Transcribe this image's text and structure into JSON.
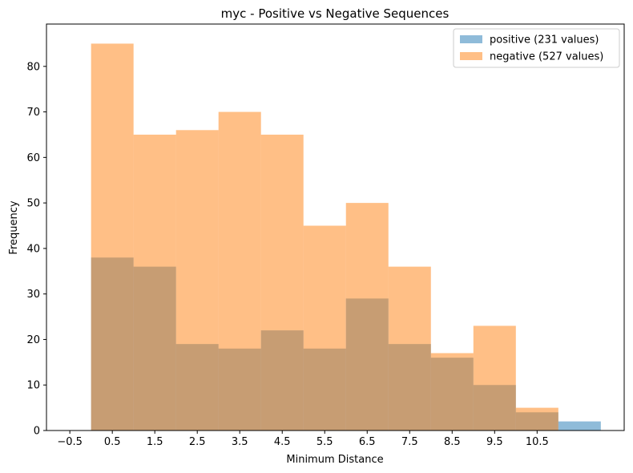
{
  "chart_data": {
    "type": "bar",
    "title": "myc - Positive vs Negative Sequences",
    "xlabel": "Minimum Distance",
    "ylabel": "Frequency",
    "x_tick_labels": [
      "−0.5",
      "0.5",
      "1.5",
      "2.5",
      "3.5",
      "4.5",
      "5.5",
      "6.5",
      "7.5",
      "8.5",
      "9.5",
      "10.5"
    ],
    "x_tick_values": [
      -0.5,
      0.5,
      1.5,
      2.5,
      3.5,
      4.5,
      5.5,
      6.5,
      7.5,
      8.5,
      9.5,
      10.5
    ],
    "y_tick_labels": [
      "0",
      "10",
      "20",
      "30",
      "40",
      "50",
      "60",
      "70",
      "80"
    ],
    "y_tick_values": [
      0,
      10,
      20,
      30,
      40,
      50,
      60,
      70,
      80
    ],
    "xlim": [
      -1.05,
      12.55
    ],
    "ylim": [
      0,
      89.3
    ],
    "bin_edges": [
      0,
      1,
      2,
      3,
      4,
      5,
      6,
      7,
      8,
      9,
      10,
      11,
      12
    ],
    "series": [
      {
        "name": "positive (231 values)",
        "color": "#1f77b4",
        "alpha": 0.5,
        "values": [
          38,
          36,
          19,
          18,
          22,
          18,
          29,
          19,
          16,
          10,
          4,
          2
        ]
      },
      {
        "name": "negative (527 values)",
        "color": "#ff7f0e",
        "alpha": 0.5,
        "values": [
          85,
          65,
          66,
          70,
          65,
          45,
          50,
          36,
          17,
          23,
          5,
          0
        ]
      }
    ],
    "legend_position": "top-right",
    "grid": false
  }
}
